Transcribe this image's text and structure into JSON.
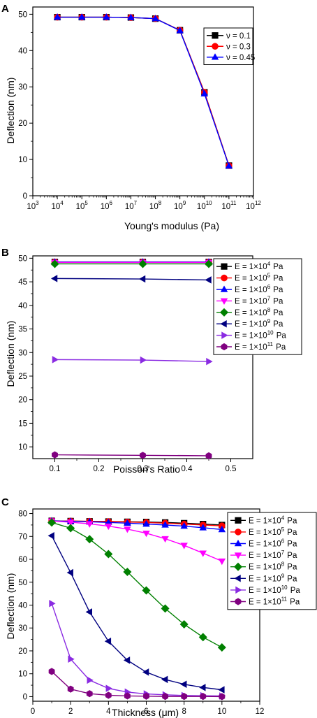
{
  "chart_data": [
    {
      "panel": "A",
      "type": "line",
      "xlabel": "Young's modulus (Pa)",
      "ylabel": "Deflection (nm)",
      "xscale": "log",
      "xlim": [
        1000,
        1000000000000
      ],
      "ylim": [
        0,
        52
      ],
      "x": [
        10000,
        100000,
        1000000,
        10000000,
        100000000,
        1000000000,
        10000000000,
        100000000000
      ],
      "x_ticks": [
        3,
        4,
        5,
        6,
        7,
        8,
        9,
        10,
        11,
        12
      ],
      "y_ticks": [
        0,
        10,
        20,
        30,
        40,
        50
      ],
      "legend": "top-right",
      "series": [
        {
          "name": "ν = 0.1",
          "color": "#000000",
          "marker": "square",
          "values": [
            49.2,
            49.2,
            49.2,
            49.1,
            48.8,
            45.6,
            28.5,
            8.3
          ]
        },
        {
          "name": "ν = 0.3",
          "color": "#ff0000",
          "marker": "circle",
          "values": [
            49.2,
            49.2,
            49.2,
            49.1,
            48.8,
            45.6,
            28.5,
            8.3
          ]
        },
        {
          "name": "ν = 0.45",
          "color": "#0000ff",
          "marker": "triangle-up",
          "values": [
            49.2,
            49.2,
            49.2,
            49.1,
            48.8,
            45.5,
            28.1,
            8.2
          ]
        }
      ]
    },
    {
      "panel": "B",
      "type": "line",
      "xlabel": "Poisson's Ratio",
      "ylabel": "Deflection (nm)",
      "xlim": [
        0.05,
        0.55
      ],
      "ylim": [
        7.5,
        50.5
      ],
      "x": [
        0.1,
        0.3,
        0.45
      ],
      "x_ticks": [
        0.1,
        0.2,
        0.3,
        0.4,
        0.5
      ],
      "y_ticks": [
        10,
        15,
        20,
        25,
        30,
        35,
        40,
        45,
        50
      ],
      "legend": "top-right",
      "series": [
        {
          "name": "E = 1×10^4 Pa",
          "color": "#000000",
          "marker": "square",
          "values": [
            49.2,
            49.2,
            49.2
          ]
        },
        {
          "name": "E = 1×10^5 Pa",
          "color": "#ff0000",
          "marker": "circle",
          "values": [
            49.2,
            49.2,
            49.2
          ]
        },
        {
          "name": "E = 1×10^6 Pa",
          "color": "#0000ff",
          "marker": "triangle-up",
          "values": [
            49.2,
            49.2,
            49.2
          ]
        },
        {
          "name": "E = 1×10^7 Pa",
          "color": "#ff00ff",
          "marker": "triangle-down",
          "values": [
            49.1,
            49.1,
            49.1
          ]
        },
        {
          "name": "E = 1×10^8 Pa",
          "color": "#008000",
          "marker": "diamond",
          "values": [
            48.8,
            48.8,
            48.8
          ]
        },
        {
          "name": "E = 1×10^9 Pa",
          "color": "#000080",
          "marker": "triangle-left",
          "values": [
            45.7,
            45.6,
            45.4
          ]
        },
        {
          "name": "E = 1×10^10 Pa",
          "color": "#8a2be2",
          "marker": "triangle-right",
          "values": [
            28.5,
            28.4,
            28.1
          ]
        },
        {
          "name": "E = 1×10^11 Pa",
          "color": "#800080",
          "marker": "hexagon",
          "values": [
            8.3,
            8.2,
            8.1
          ]
        }
      ]
    },
    {
      "panel": "C",
      "type": "line",
      "xlabel": "Thickness (μm)",
      "ylabel": "Deflection (nm)",
      "xlim": [
        0,
        12
      ],
      "ylim": [
        -2,
        82
      ],
      "x": [
        1,
        2,
        3,
        4,
        5,
        6,
        7,
        8,
        9,
        10
      ],
      "x_ticks": [
        0,
        2,
        4,
        6,
        8,
        10,
        12
      ],
      "y_ticks": [
        0,
        10,
        20,
        30,
        40,
        50,
        60,
        70,
        80
      ],
      "legend": "top-right",
      "series": [
        {
          "name": "E = 1×10^4 Pa",
          "color": "#000000",
          "marker": "square",
          "values": [
            76.8,
            76.7,
            76.6,
            76.5,
            76.4,
            76.3,
            76.1,
            75.8,
            75.4,
            75.0
          ]
        },
        {
          "name": "E = 1×10^5 Pa",
          "color": "#ff0000",
          "marker": "circle",
          "values": [
            76.8,
            76.7,
            76.6,
            76.5,
            76.3,
            76.1,
            75.8,
            75.4,
            75.0,
            74.6
          ]
        },
        {
          "name": "E = 1×10^6 Pa",
          "color": "#0000ff",
          "marker": "triangle-up",
          "values": [
            76.8,
            76.6,
            76.4,
            76.1,
            75.8,
            75.4,
            75.0,
            74.5,
            73.8,
            73.0
          ]
        },
        {
          "name": "E = 1×10^7 Pa",
          "color": "#ff00ff",
          "marker": "triangle-down",
          "values": [
            76.7,
            76.2,
            75.5,
            74.5,
            73.2,
            71.4,
            69.0,
            66.1,
            62.7,
            59.2
          ]
        },
        {
          "name": "E = 1×10^8 Pa",
          "color": "#008000",
          "marker": "diamond",
          "values": [
            76.1,
            73.6,
            68.8,
            62.3,
            54.5,
            46.4,
            38.5,
            31.6,
            26.0,
            21.5
          ]
        },
        {
          "name": "E = 1×10^9 Pa",
          "color": "#000080",
          "marker": "triangle-left",
          "values": [
            70.3,
            54.2,
            37.0,
            24.2,
            15.9,
            10.7,
            7.5,
            5.4,
            4.0,
            3.0
          ]
        },
        {
          "name": "E = 1×10^10 Pa",
          "color": "#8a2be2",
          "marker": "triangle-right",
          "values": [
            40.7,
            16.4,
            7.2,
            3.6,
            2.0,
            1.2,
            0.8,
            0.5,
            0.4,
            0.3
          ]
        },
        {
          "name": "E = 1×10^11 Pa",
          "color": "#800080",
          "marker": "hexagon",
          "values": [
            11.0,
            3.3,
            1.3,
            0.6,
            0.3,
            0.2,
            0.1,
            0.1,
            0.1,
            0.0
          ]
        }
      ]
    }
  ]
}
